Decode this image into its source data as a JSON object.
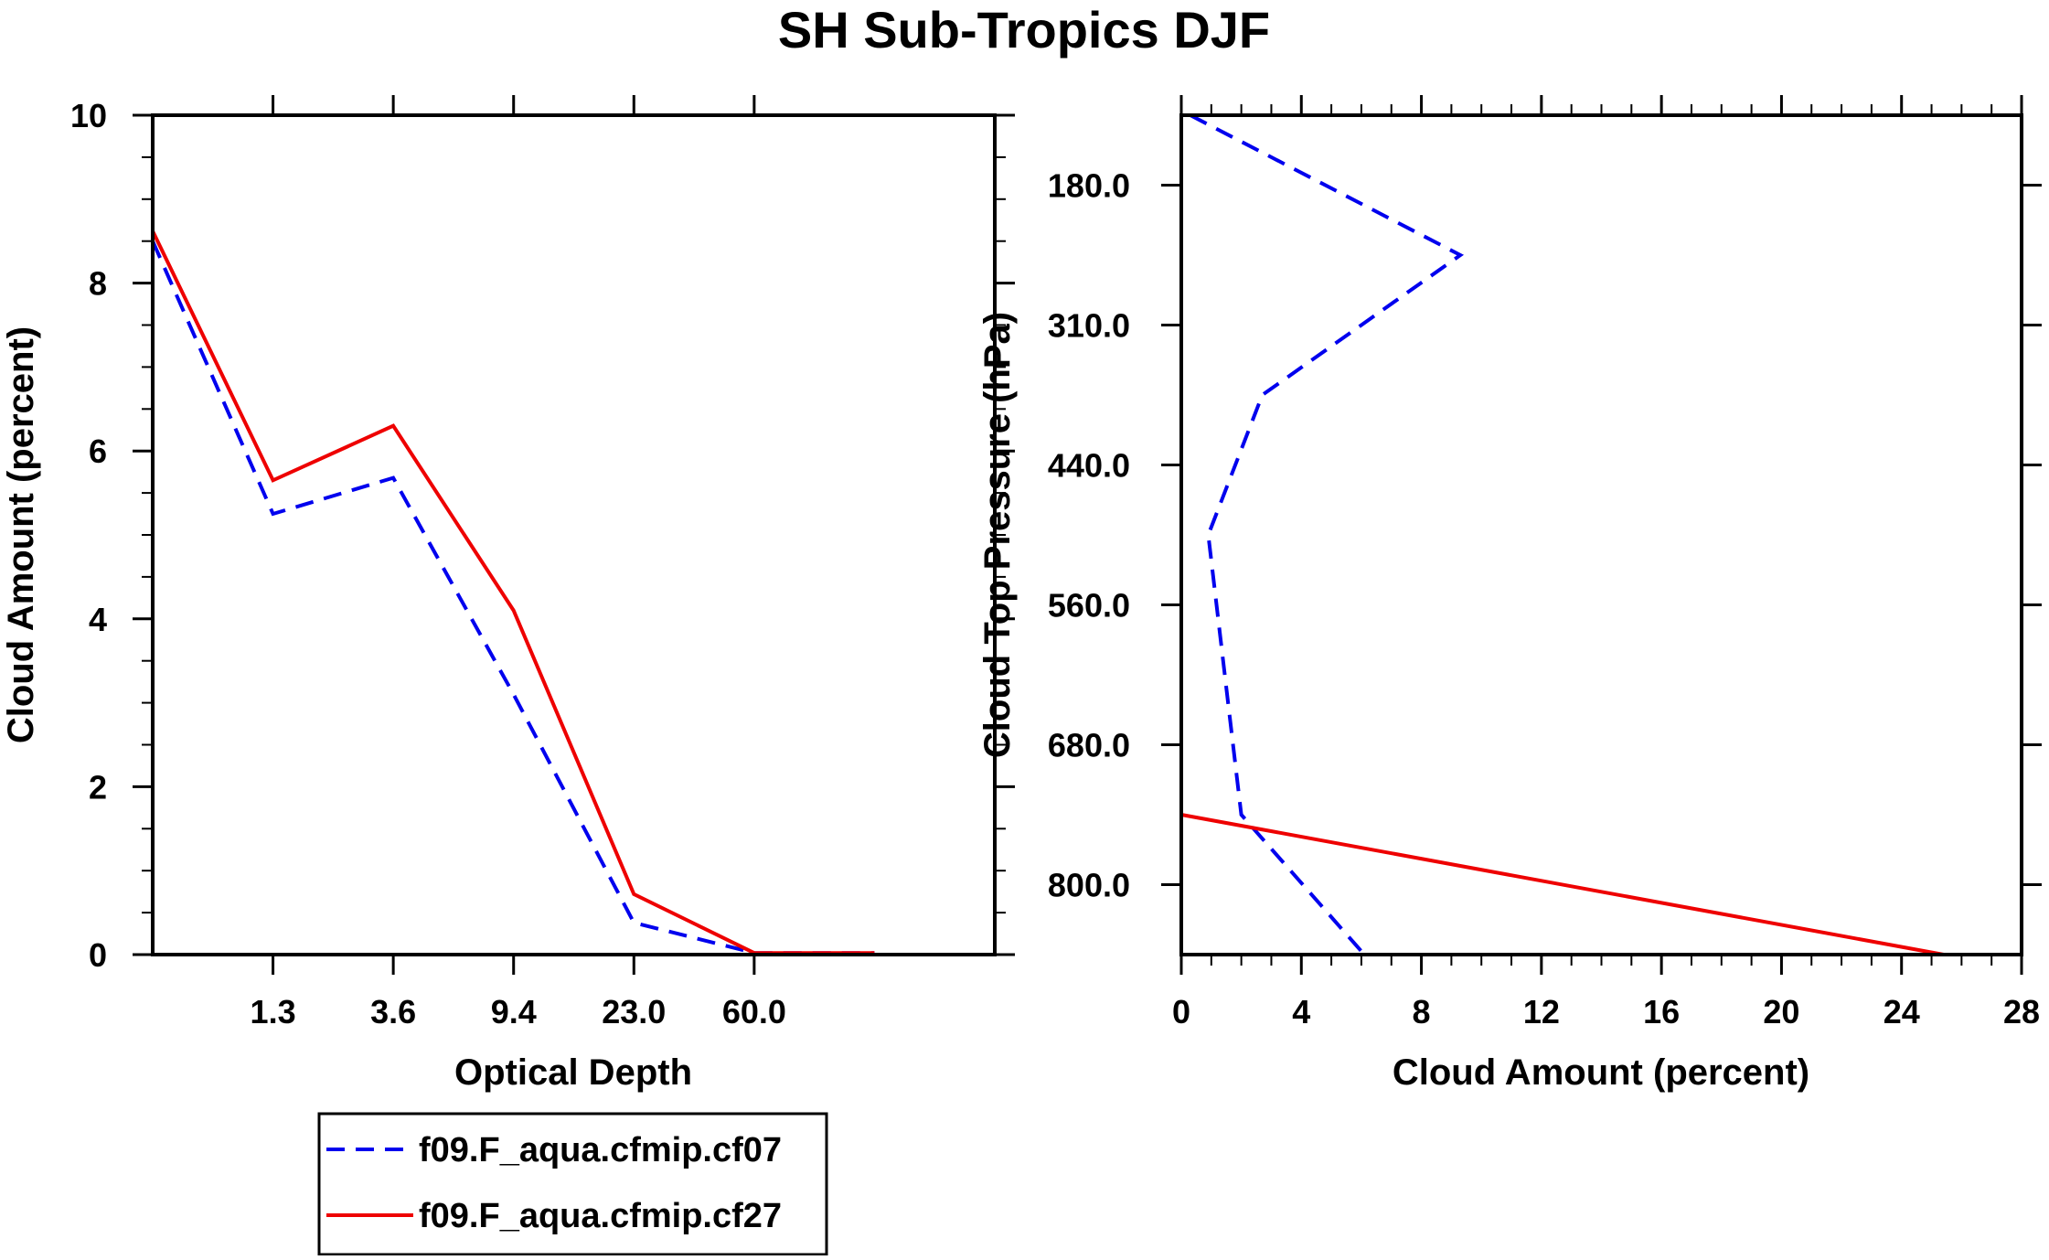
{
  "title": "SH Sub-Tropics DJF",
  "colors": {
    "series1": "#0000ee",
    "series2": "#ee0000",
    "axis": "#000000"
  },
  "chart_data": [
    {
      "type": "line",
      "xlabel": "Optical Depth",
      "ylabel": "Cloud Amount (percent)",
      "xlim": [
        0,
        7
      ],
      "ylim": [
        0,
        10
      ],
      "x_tick_positions": [
        1,
        2,
        3,
        4,
        5
      ],
      "x_tick_labels": [
        "1.3",
        "3.6",
        "9.4",
        "23.0",
        "60.0"
      ],
      "y_ticks": [
        0,
        2,
        4,
        6,
        8,
        10
      ],
      "x": [
        0,
        1,
        2,
        3,
        4,
        5,
        6
      ],
      "series": [
        {
          "name": "f09.F_aqua.cfmip.cf07",
          "style": "dashed",
          "values": [
            8.5,
            5.25,
            5.68,
            3.1,
            0.38,
            0.02,
            0.02
          ]
        },
        {
          "name": "f09.F_aqua.cfmip.cf27",
          "style": "solid",
          "values": [
            8.62,
            5.65,
            6.3,
            4.1,
            0.72,
            0.02,
            0.02
          ]
        }
      ]
    },
    {
      "type": "line",
      "xlabel": "Cloud Amount (percent)",
      "ylabel": "Cloud Top Pressure (hPa)",
      "xlim": [
        0,
        28
      ],
      "ylim": [
        0,
        6
      ],
      "y_tick_positions": [
        0.5,
        1.5,
        2.5,
        3.5,
        4.5,
        5.5
      ],
      "y_tick_labels": [
        "180.0",
        "310.0",
        "440.0",
        "560.0",
        "680.0",
        "800.0"
      ],
      "x_ticks": [
        0,
        4,
        8,
        12,
        16,
        20,
        24,
        28
      ],
      "series": [
        {
          "name": "f09.F_aqua.cfmip.cf07",
          "style": "dashed",
          "x": [
            0.3,
            9.3,
            2.7,
            0.9,
            2.0,
            6.1
          ],
          "y": [
            0,
            1,
            2,
            3,
            5,
            6
          ]
        },
        {
          "name": "f09.F_aqua.cfmip.cf27",
          "style": "solid",
          "x": [
            0,
            25.4
          ],
          "y": [
            5,
            6
          ]
        }
      ]
    }
  ],
  "legend": {
    "position": "bottom-left",
    "items": [
      {
        "label": "f09.F_aqua.cfmip.cf07",
        "style": "dashed"
      },
      {
        "label": "f09.F_aqua.cfmip.cf27",
        "style": "solid"
      }
    ]
  }
}
